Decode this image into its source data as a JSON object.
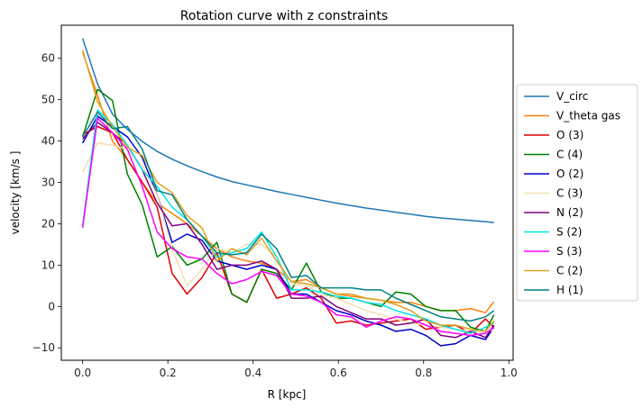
{
  "chart_data": {
    "type": "line",
    "title": "Rotation curve with z constraints",
    "xlabel": "R [kpc]",
    "ylabel": "velocity [km/s ]",
    "xlim": [
      -0.05,
      1.01
    ],
    "ylim": [
      -13,
      68
    ],
    "xticks": [
      0.0,
      0.2,
      0.4,
      0.6,
      0.8,
      1.0
    ],
    "xtick_labels": [
      "0.0",
      "0.2",
      "0.4",
      "0.6",
      "0.8",
      "1.0"
    ],
    "yticks": [
      -10,
      0,
      10,
      20,
      30,
      40,
      50,
      60
    ],
    "ytick_labels": [
      "−10",
      "0",
      "10",
      "20",
      "30",
      "40",
      "50",
      "60"
    ],
    "grid": false,
    "legend_position": "outside-right",
    "x": [
      0.0,
      0.035,
      0.07,
      0.105,
      0.14,
      0.175,
      0.21,
      0.245,
      0.28,
      0.315,
      0.35,
      0.385,
      0.42,
      0.455,
      0.49,
      0.525,
      0.56,
      0.595,
      0.63,
      0.665,
      0.7,
      0.735,
      0.77,
      0.805,
      0.84,
      0.875,
      0.91,
      0.945,
      0.965
    ],
    "series": [
      {
        "name": "V_circ",
        "color": "#1f77b4",
        "values": [
          64.8,
          53.8,
          46.5,
          42.8,
          39.9,
          37.5,
          35.6,
          34.0,
          32.6,
          31.3,
          30.2,
          29.4,
          28.6,
          27.8,
          27.1,
          26.4,
          25.7,
          25.0,
          24.4,
          23.8,
          23.3,
          22.8,
          22.3,
          21.8,
          21.4,
          21.1,
          20.8,
          20.5,
          20.3
        ]
      },
      {
        "name": "V_theta gas",
        "color": "#ff7f0e",
        "values": [
          61.5,
          51.0,
          40.0,
          35.5,
          30.0,
          25.0,
          22.5,
          20.0,
          17.0,
          14.0,
          12.0,
          11.0,
          10.5,
          9.0,
          6.0,
          6.5,
          4.5,
          3.0,
          2.5,
          2.0,
          1.5,
          1.0,
          1.0,
          0.0,
          -1.0,
          -1.0,
          -0.5,
          -1.5,
          1.2
        ]
      },
      {
        "name": "O (3)",
        "color": "#e00000",
        "values": [
          41.5,
          43.5,
          42.0,
          35.5,
          30.0,
          24.0,
          8.0,
          3.0,
          7.0,
          13.0,
          3.0,
          1.0,
          9.0,
          2.0,
          3.0,
          4.5,
          2.0,
          -4.0,
          -3.5,
          -4.5,
          -4.0,
          -3.5,
          -3.0,
          -5.5,
          -5.0,
          -4.5,
          -6.5,
          -3.0,
          -5.0
        ]
      },
      {
        "name": "C (4)",
        "color": "#008000",
        "values": [
          41.0,
          52.5,
          49.8,
          32.0,
          24.5,
          12.0,
          14.5,
          10.0,
          11.5,
          15.5,
          3.0,
          1.0,
          9.0,
          8.0,
          4.0,
          10.5,
          3.5,
          2.0,
          2.0,
          1.0,
          0.0,
          3.5,
          3.0,
          0.0,
          -1.0,
          -1.0,
          -5.0,
          -6.0,
          -2.0
        ]
      },
      {
        "name": "O (2)",
        "color": "#0000cd",
        "values": [
          39.5,
          46.0,
          43.5,
          41.0,
          36.0,
          27.0,
          15.5,
          17.5,
          16.0,
          11.0,
          10.0,
          9.0,
          10.0,
          9.0,
          3.0,
          3.0,
          1.0,
          -1.0,
          -2.0,
          -3.5,
          -4.5,
          -6.0,
          -5.5,
          -7.0,
          -9.5,
          -9.0,
          -7.0,
          -8.0,
          -5.0
        ]
      },
      {
        "name": "C (3)",
        "color": "#f5deb3",
        "values": [
          32.5,
          39.5,
          39.0,
          38.0,
          34.0,
          27.0,
          14.0,
          5.0,
          9.0,
          14.0,
          13.0,
          15.0,
          15.0,
          12.0,
          5.5,
          5.0,
          3.0,
          2.0,
          0.5,
          -1.0,
          -2.0,
          -3.0,
          -4.0,
          -4.5,
          -5.0,
          -5.5,
          -6.0,
          -6.5,
          -5.5
        ]
      },
      {
        "name": "N (2)",
        "color": "#800080",
        "values": [
          40.5,
          44.5,
          42.0,
          39.0,
          33.0,
          25.0,
          19.5,
          20.0,
          15.0,
          9.0,
          10.0,
          10.0,
          11.0,
          9.0,
          2.0,
          2.0,
          2.5,
          0.0,
          -1.5,
          -3.0,
          -3.0,
          -4.5,
          -4.0,
          -3.0,
          -7.0,
          -7.5,
          -6.0,
          -7.5,
          -4.5
        ]
      },
      {
        "name": "S (2)",
        "color": "#00e5e5",
        "values": [
          19.5,
          47.5,
          44.0,
          39.0,
          33.0,
          29.0,
          24.0,
          21.0,
          17.0,
          12.0,
          13.0,
          14.0,
          18.0,
          12.0,
          4.0,
          4.0,
          3.5,
          2.5,
          2.0,
          1.0,
          0.5,
          -1.0,
          -2.0,
          -3.0,
          -4.5,
          -5.5,
          -6.5,
          -5.0,
          -4.0
        ]
      },
      {
        "name": "S (3)",
        "color": "#ff00ff",
        "values": [
          19.0,
          45.5,
          42.0,
          38.0,
          29.0,
          18.0,
          14.0,
          12.0,
          11.5,
          8.0,
          5.5,
          6.5,
          8.5,
          7.5,
          3.0,
          2.5,
          1.0,
          -2.0,
          -2.5,
          -5.0,
          -3.5,
          -2.5,
          -3.0,
          -4.5,
          -6.0,
          -6.5,
          -7.0,
          -6.5,
          -5.0
        ]
      },
      {
        "name": "C (2)",
        "color": "#daa520",
        "values": [
          62.0,
          49.5,
          43.5,
          38.5,
          36.5,
          30.0,
          27.5,
          22.0,
          19.0,
          11.0,
          14.0,
          12.5,
          16.5,
          11.0,
          6.0,
          5.5,
          4.5,
          3.0,
          3.0,
          2.0,
          1.5,
          0.5,
          -1.0,
          -3.5,
          -4.5,
          -4.5,
          -5.5,
          -6.0,
          -3.5
        ]
      },
      {
        "name": "H (1)",
        "color": "#008080",
        "values": [
          41.0,
          47.0,
          43.0,
          43.5,
          38.0,
          28.0,
          27.0,
          21.0,
          17.0,
          13.0,
          12.5,
          13.0,
          17.5,
          14.0,
          7.0,
          7.5,
          4.5,
          4.5,
          4.5,
          4.0,
          4.0,
          2.0,
          0.5,
          -1.0,
          -2.5,
          -3.0,
          -3.5,
          -2.5,
          -1.0
        ]
      }
    ]
  }
}
